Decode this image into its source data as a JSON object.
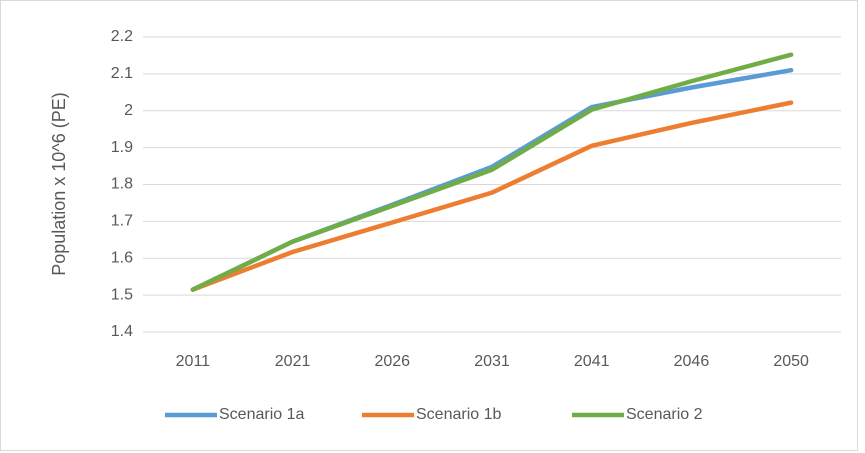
{
  "chart_data": {
    "type": "line",
    "y_label": "Population x 10^6 (PE)",
    "categories": [
      "2011",
      "2021",
      "2026",
      "2031",
      "2041",
      "2046",
      "2050"
    ],
    "series": [
      {
        "name": "Scenario 1a",
        "color": "#5b9bd5",
        "values": [
          1.515,
          1.645,
          1.745,
          1.848,
          2.01,
          2.063,
          2.11
        ]
      },
      {
        "name": "Scenario 1b",
        "color": "#ed7d31",
        "values": [
          1.515,
          1.617,
          1.697,
          1.778,
          1.905,
          1.967,
          2.022
        ]
      },
      {
        "name": "Scenario 2",
        "color": "#70ad47",
        "values": [
          1.515,
          1.645,
          1.742,
          1.84,
          2.003,
          2.08,
          2.152
        ]
      }
    ],
    "ylim": [
      1.4,
      2.2
    ],
    "yticks": [
      1.4,
      1.5,
      1.6,
      1.7,
      1.8,
      1.9,
      2,
      2.1,
      2.2
    ],
    "grid": true,
    "legend": "bottom"
  }
}
